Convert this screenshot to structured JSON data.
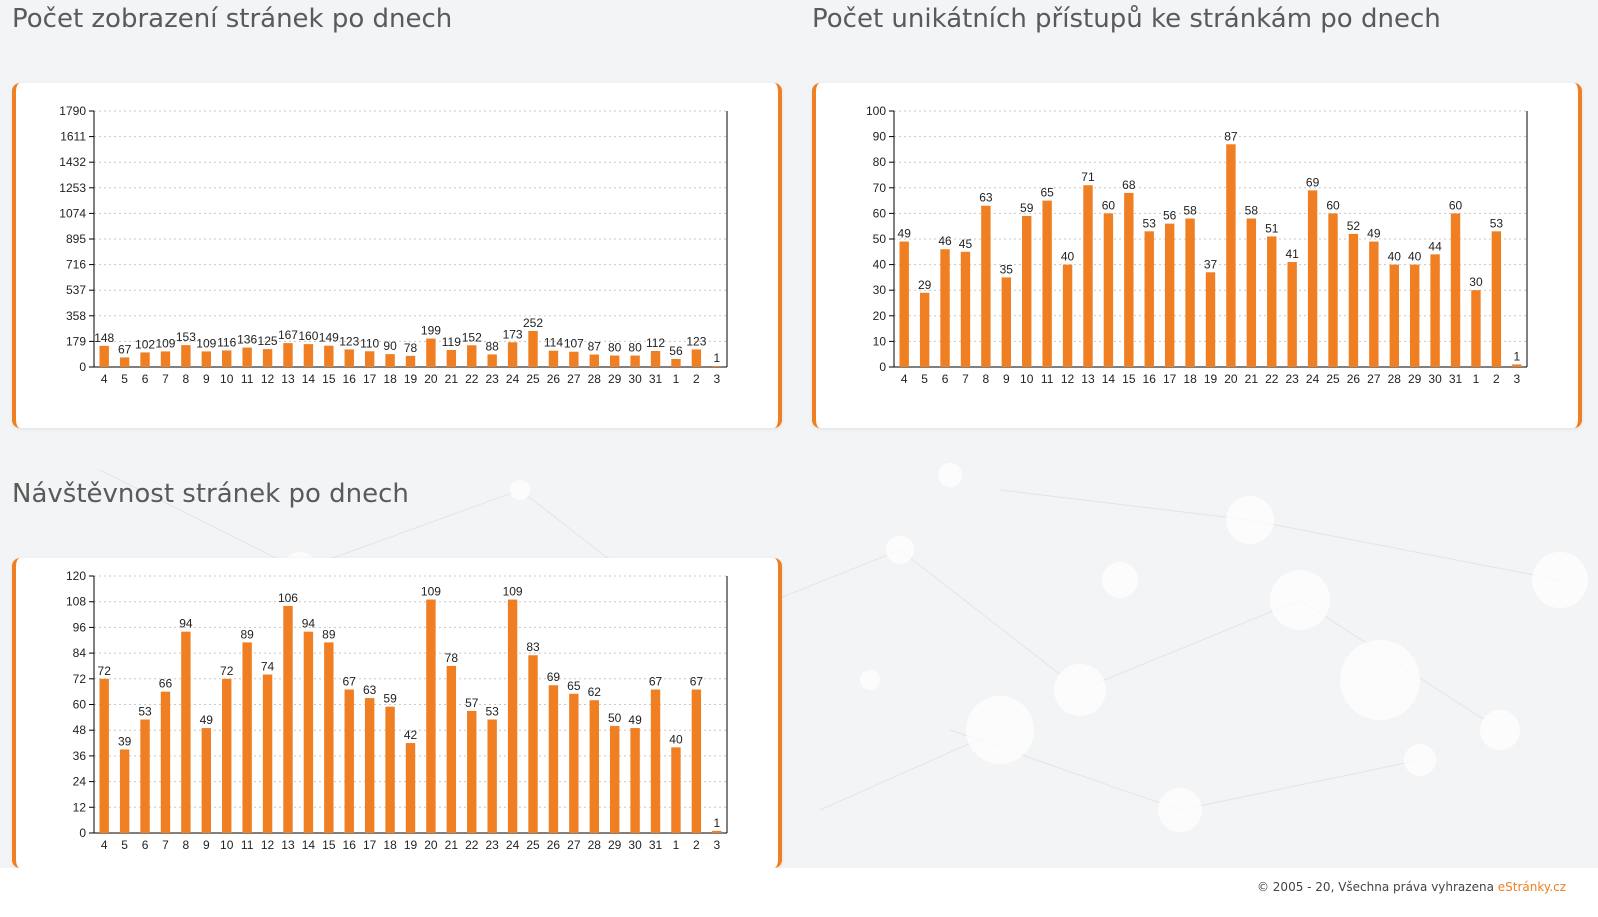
{
  "sections": [
    {
      "title": "Počet zobrazení stránek po dnech"
    },
    {
      "title": "Počet unikátních přístupů ke stránkám po dnech"
    },
    {
      "title": "Návštěvnost stránek po dnech"
    }
  ],
  "colors": {
    "bar": "#ef7f22",
    "accent": "#ef7f22",
    "grid": "#c8c8c8",
    "axis": "#000000"
  },
  "footer": {
    "copyright": "© 2005 - 20, Všechna práva vyhrazena",
    "brand": "eStránky.cz"
  },
  "chart_data": [
    {
      "type": "bar",
      "title": "Počet zobrazení stránek po dnech",
      "categories": [
        "4",
        "5",
        "6",
        "7",
        "8",
        "9",
        "10",
        "11",
        "12",
        "13",
        "14",
        "15",
        "16",
        "17",
        "18",
        "19",
        "20",
        "21",
        "22",
        "23",
        "24",
        "25",
        "26",
        "27",
        "28",
        "29",
        "30",
        "31",
        "1",
        "2",
        "3"
      ],
      "values": [
        148,
        67,
        102,
        109,
        153,
        109,
        116,
        136,
        125,
        167,
        160,
        149,
        123,
        110,
        90,
        78,
        199,
        119,
        152,
        88,
        173,
        252,
        114,
        107,
        87,
        80,
        80,
        112,
        56,
        123,
        1
      ],
      "yticks": [
        0,
        179,
        358,
        537,
        716,
        895,
        1074,
        1253,
        1432,
        1611,
        1790
      ],
      "ylim": [
        0,
        1790
      ],
      "grid": true
    },
    {
      "type": "bar",
      "title": "Počet unikátních přístupů ke stránkám po dnech",
      "categories": [
        "4",
        "5",
        "6",
        "7",
        "8",
        "9",
        "10",
        "11",
        "12",
        "13",
        "14",
        "15",
        "16",
        "17",
        "18",
        "19",
        "20",
        "21",
        "22",
        "23",
        "24",
        "25",
        "26",
        "27",
        "28",
        "29",
        "30",
        "31",
        "1",
        "2",
        "3"
      ],
      "values": [
        49,
        29,
        46,
        45,
        63,
        35,
        59,
        65,
        40,
        71,
        60,
        68,
        53,
        56,
        58,
        37,
        87,
        58,
        51,
        41,
        69,
        60,
        52,
        49,
        40,
        40,
        44,
        60,
        30,
        53,
        1
      ],
      "yticks": [
        0,
        10,
        20,
        30,
        40,
        50,
        60,
        70,
        80,
        90,
        100
      ],
      "ylim": [
        0,
        100
      ],
      "grid": true
    },
    {
      "type": "bar",
      "title": "Návštěvnost stránek po dnech",
      "categories": [
        "4",
        "5",
        "6",
        "7",
        "8",
        "9",
        "10",
        "11",
        "12",
        "13",
        "14",
        "15",
        "16",
        "17",
        "18",
        "19",
        "20",
        "21",
        "22",
        "23",
        "24",
        "25",
        "26",
        "27",
        "28",
        "29",
        "30",
        "31",
        "1",
        "2",
        "3"
      ],
      "values": [
        72,
        39,
        53,
        66,
        94,
        49,
        72,
        89,
        74,
        106,
        94,
        89,
        67,
        63,
        59,
        42,
        109,
        78,
        57,
        53,
        109,
        83,
        69,
        65,
        62,
        50,
        49,
        67,
        40,
        67,
        1
      ],
      "yticks": [
        0,
        12,
        24,
        36,
        48,
        60,
        72,
        84,
        96,
        108,
        120
      ],
      "ylim": [
        0,
        120
      ],
      "grid": true
    }
  ]
}
